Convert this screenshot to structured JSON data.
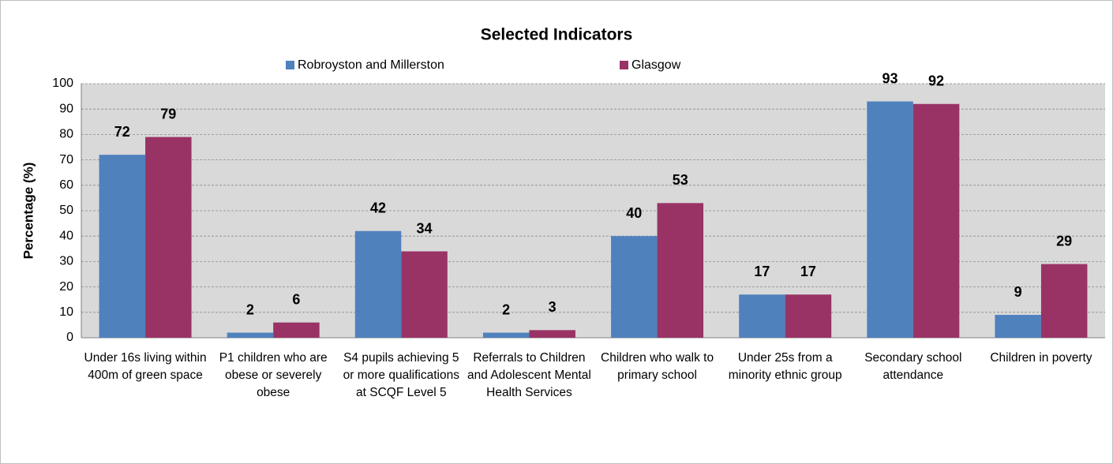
{
  "chart_data": {
    "type": "bar",
    "title": "Selected Indicators",
    "y_label": "Percentage (%)",
    "categories": [
      "Under 16s living within 400m of green space",
      "P1 children who are obese or severely obese",
      "S4 pupils achieving 5 or more qualifications at SCQF Level 5",
      "Referrals to Children and Adolescent Mental Health Services",
      "Children who walk to primary school",
      "Under 25s from a minority ethnic group",
      "Secondary school attendance",
      "Children in poverty"
    ],
    "series": [
      {
        "name": "Robroyston and Millerston",
        "color": "#4f81bd",
        "values": [
          72,
          2,
          42,
          2,
          40,
          17,
          93,
          9
        ]
      },
      {
        "name": "Glasgow",
        "color": "#993366",
        "values": [
          79,
          6,
          34,
          3,
          53,
          17,
          92,
          29
        ]
      }
    ],
    "ylim": [
      0,
      100
    ],
    "yticks": [
      0,
      10,
      20,
      30,
      40,
      50,
      60,
      70,
      80,
      90,
      100
    ],
    "grid": true
  }
}
